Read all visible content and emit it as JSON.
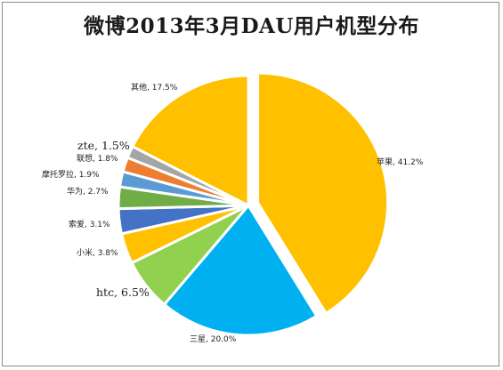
{
  "chart_data": {
    "type": "pie",
    "title": "微博2013年3月DAU用户机型分布",
    "start_angle_deg": 0,
    "slices": [
      {
        "name": "苹果",
        "value": 41.2,
        "label": "苹果, 41.2%",
        "color": "#ffc000",
        "exploded": true
      },
      {
        "name": "三星",
        "value": 20.0,
        "label": "三星, 20.0%",
        "color": "#00b0f0"
      },
      {
        "name": "htc",
        "value": 6.5,
        "label": "htc, 6.5%",
        "color": "#92d050"
      },
      {
        "name": "小米",
        "value": 3.8,
        "label": "小米, 3.8%",
        "color": "#ffc000"
      },
      {
        "name": "索爱",
        "value": 3.1,
        "label": "索爱, 3.1%",
        "color": "#4472c4"
      },
      {
        "name": "华为",
        "value": 2.7,
        "label": "华为, 2.7%",
        "color": "#70ad47"
      },
      {
        "name": "摩托罗拉",
        "value": 1.9,
        "label": "摩托罗拉, 1.9%",
        "color": "#5b9bd5"
      },
      {
        "name": "联想",
        "value": 1.8,
        "label": "联想, 1.8%",
        "color": "#ed7d31"
      },
      {
        "name": "zte",
        "value": 1.5,
        "label": "zte, 1.5%",
        "color": "#a5a5a5"
      },
      {
        "name": "其他",
        "value": 17.5,
        "label": "其他, 17.5%",
        "color": "#ffc000"
      }
    ]
  }
}
